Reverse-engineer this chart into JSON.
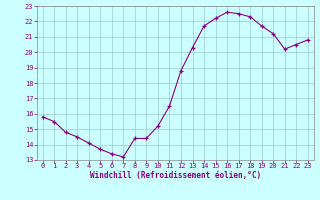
{
  "x": [
    0,
    1,
    2,
    3,
    4,
    5,
    6,
    7,
    8,
    9,
    10,
    11,
    12,
    13,
    14,
    15,
    16,
    17,
    18,
    19,
    20,
    21,
    22,
    23
  ],
  "y": [
    15.8,
    15.5,
    14.8,
    14.5,
    14.1,
    13.7,
    13.4,
    13.2,
    14.4,
    14.4,
    15.2,
    16.5,
    18.8,
    20.3,
    21.7,
    22.2,
    22.6,
    22.5,
    22.3,
    21.7,
    21.2,
    20.2,
    20.5,
    20.8
  ],
  "xlabel": "Windchill (Refroidissement éolien,°C)",
  "xlim": [
    -0.5,
    23.5
  ],
  "ylim": [
    13,
    23
  ],
  "yticks": [
    13,
    14,
    15,
    16,
    17,
    18,
    19,
    20,
    21,
    22,
    23
  ],
  "xticks": [
    0,
    1,
    2,
    3,
    4,
    5,
    6,
    7,
    8,
    9,
    10,
    11,
    12,
    13,
    14,
    15,
    16,
    17,
    18,
    19,
    20,
    21,
    22,
    23
  ],
  "line_color": "#880088",
  "bg_color": "#ccffff",
  "grid_color": "#99cccc",
  "tick_color": "#880088",
  "label_color": "#880088"
}
